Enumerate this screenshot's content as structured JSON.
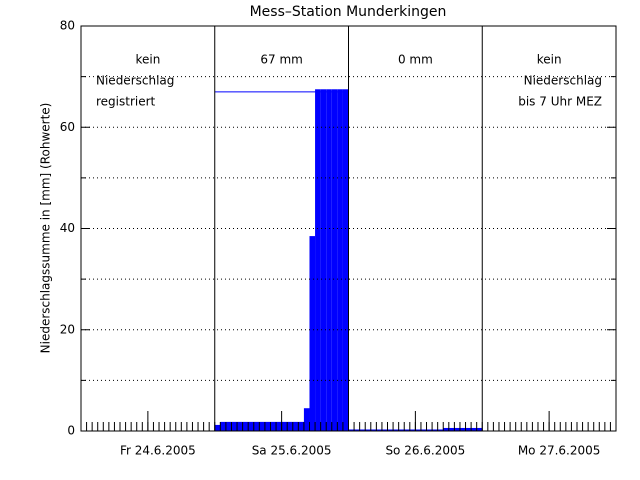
{
  "chart_data": {
    "type": "bar",
    "title": "Mess–Station Munderkingen",
    "y_label": "Niederschlagssumme in [mm] (Rohwerte)",
    "xlim": [
      0,
      96
    ],
    "ylim": [
      0,
      80
    ],
    "yticks": [
      0,
      20,
      40,
      60,
      80
    ],
    "minor_yticks": [
      10,
      30,
      50,
      70
    ],
    "xticks": [
      {
        "value": 12,
        "label": "Fr 24.6.2005"
      },
      {
        "value": 36,
        "label": "Sa 25.6.2005"
      },
      {
        "value": 60,
        "label": "So 26.6.2005"
      },
      {
        "value": 84,
        "label": "Mo 27.6.2005"
      }
    ],
    "minor_xtick_step": 1,
    "day_boundaries": [
      24,
      48,
      72
    ],
    "color": "#0000ff",
    "values": [
      null,
      null,
      null,
      null,
      null,
      null,
      null,
      null,
      null,
      null,
      null,
      null,
      null,
      null,
      null,
      null,
      null,
      null,
      null,
      null,
      null,
      null,
      null,
      null,
      1.2,
      1.8,
      1.8,
      1.8,
      1.8,
      1.8,
      1.8,
      1.8,
      1.8,
      1.8,
      1.8,
      1.8,
      1.8,
      1.8,
      1.8,
      1.8,
      4.5,
      38.5,
      67.5,
      67.5,
      67.5,
      67.5,
      67.5,
      67.5,
      0.3,
      0.3,
      0.3,
      0.3,
      0.3,
      0.3,
      0.3,
      0.3,
      0.3,
      0.3,
      0.3,
      0.3,
      0.3,
      0.3,
      0.3,
      0.3,
      0.3,
      0.6,
      0.6,
      0.6,
      0.6,
      0.6,
      0.6,
      0.6,
      null,
      null,
      null,
      null,
      null,
      null,
      null,
      null,
      null,
      null,
      null,
      null,
      null,
      null,
      null,
      null,
      null,
      null,
      null,
      null,
      null,
      null,
      null,
      null
    ],
    "reference_lines": [
      {
        "start": 24,
        "end": 48,
        "value": 67
      }
    ],
    "annotations": [
      [
        "kein",
        "Niederschlag",
        "registriert"
      ],
      [
        "67 mm"
      ],
      [
        "0 mm"
      ],
      [
        "kein",
        "Niederschlag",
        "bis 7 Uhr MEZ"
      ]
    ]
  }
}
